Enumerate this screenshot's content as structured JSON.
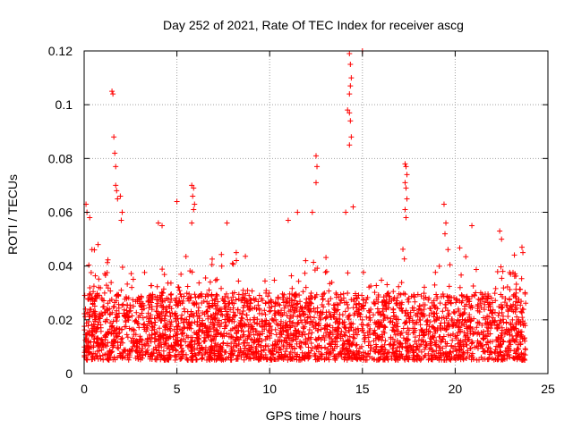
{
  "chart_data": {
    "type": "scatter",
    "title": "Day 252 of 2021, Rate Of TEC Index for receiver ascg",
    "xlabel": "GPS time / hours",
    "ylabel": "ROTI / TECUs",
    "xlim": [
      0,
      25
    ],
    "ylim": [
      0,
      0.12
    ],
    "x_ticks": [
      0,
      5,
      10,
      15,
      20,
      25
    ],
    "x_tick_labels": [
      "0",
      "5",
      "10",
      "15",
      "20",
      "25"
    ],
    "y_ticks": [
      0,
      0.02,
      0.04,
      0.06,
      0.08,
      0.1,
      0.12
    ],
    "y_tick_labels": [
      "0",
      "0.02",
      "0.04",
      "0.06",
      "0.08",
      "0.1",
      "0.12"
    ],
    "grid": true,
    "marker": "+",
    "series": [
      {
        "name": "ROTI",
        "color": "#ff0000",
        "x_range": [
          0,
          23.8
        ],
        "baseline_range": [
          0.005,
          0.03
        ],
        "notable_points": [
          {
            "x": 0.1,
            "y": 0.063
          },
          {
            "x": 0.15,
            "y": 0.06
          },
          {
            "x": 0.3,
            "y": 0.058
          },
          {
            "x": 0.55,
            "y": 0.046
          },
          {
            "x": 0.75,
            "y": 0.048
          },
          {
            "x": 1.5,
            "y": 0.105
          },
          {
            "x": 1.55,
            "y": 0.104
          },
          {
            "x": 1.6,
            "y": 0.088
          },
          {
            "x": 1.65,
            "y": 0.082
          },
          {
            "x": 1.7,
            "y": 0.077
          },
          {
            "x": 1.7,
            "y": 0.07
          },
          {
            "x": 1.75,
            "y": 0.068
          },
          {
            "x": 1.8,
            "y": 0.065
          },
          {
            "x": 1.95,
            "y": 0.066
          },
          {
            "x": 2.05,
            "y": 0.06
          },
          {
            "x": 2.0,
            "y": 0.057
          },
          {
            "x": 4.0,
            "y": 0.056
          },
          {
            "x": 4.2,
            "y": 0.055
          },
          {
            "x": 5.0,
            "y": 0.064
          },
          {
            "x": 5.8,
            "y": 0.07
          },
          {
            "x": 5.9,
            "y": 0.069
          },
          {
            "x": 5.85,
            "y": 0.066
          },
          {
            "x": 5.95,
            "y": 0.063
          },
          {
            "x": 5.9,
            "y": 0.061
          },
          {
            "x": 5.8,
            "y": 0.056
          },
          {
            "x": 7.7,
            "y": 0.056
          },
          {
            "x": 8.2,
            "y": 0.045
          },
          {
            "x": 11.0,
            "y": 0.057
          },
          {
            "x": 11.5,
            "y": 0.06
          },
          {
            "x": 12.5,
            "y": 0.081
          },
          {
            "x": 12.55,
            "y": 0.077
          },
          {
            "x": 12.5,
            "y": 0.071
          },
          {
            "x": 12.3,
            "y": 0.06
          },
          {
            "x": 14.3,
            "y": 0.119
          },
          {
            "x": 14.35,
            "y": 0.115
          },
          {
            "x": 14.4,
            "y": 0.11
          },
          {
            "x": 14.35,
            "y": 0.107
          },
          {
            "x": 14.3,
            "y": 0.104
          },
          {
            "x": 14.2,
            "y": 0.098
          },
          {
            "x": 14.3,
            "y": 0.097
          },
          {
            "x": 14.35,
            "y": 0.094
          },
          {
            "x": 14.4,
            "y": 0.088
          },
          {
            "x": 14.3,
            "y": 0.085
          },
          {
            "x": 14.5,
            "y": 0.062
          },
          {
            "x": 14.1,
            "y": 0.06
          },
          {
            "x": 15.0,
            "y": 0.12
          },
          {
            "x": 17.3,
            "y": 0.078
          },
          {
            "x": 17.35,
            "y": 0.077
          },
          {
            "x": 17.4,
            "y": 0.074
          },
          {
            "x": 17.3,
            "y": 0.071
          },
          {
            "x": 17.35,
            "y": 0.069
          },
          {
            "x": 17.4,
            "y": 0.065
          },
          {
            "x": 17.3,
            "y": 0.061
          },
          {
            "x": 17.35,
            "y": 0.058
          },
          {
            "x": 19.4,
            "y": 0.063
          },
          {
            "x": 19.5,
            "y": 0.056
          },
          {
            "x": 19.45,
            "y": 0.052
          },
          {
            "x": 20.9,
            "y": 0.055
          },
          {
            "x": 22.4,
            "y": 0.053
          },
          {
            "x": 22.5,
            "y": 0.05
          },
          {
            "x": 23.6,
            "y": 0.047
          },
          {
            "x": 23.65,
            "y": 0.045
          }
        ]
      }
    ]
  }
}
